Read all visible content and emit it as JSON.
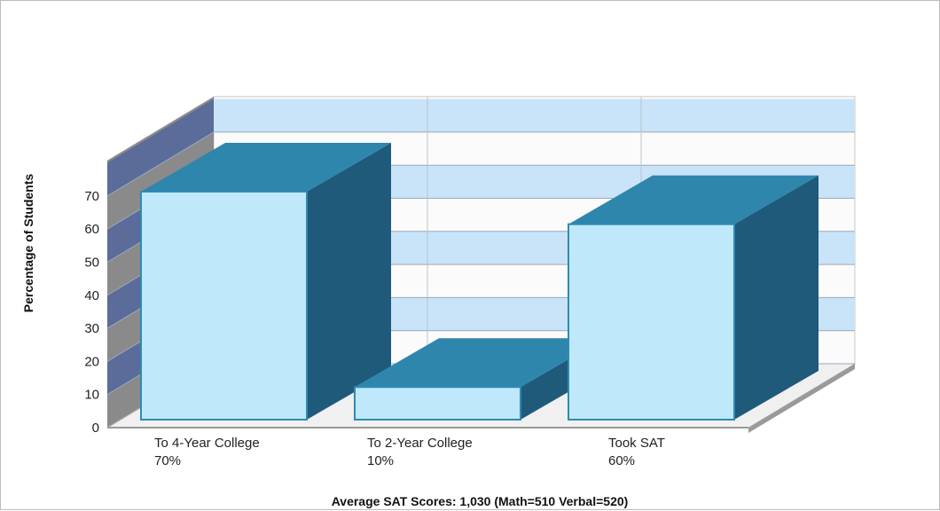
{
  "chart_data": {
    "type": "bar",
    "render": "3d",
    "categories": [
      "To 4-Year College",
      "To 2-Year College",
      "Took SAT"
    ],
    "values": [
      70,
      10,
      60
    ],
    "value_labels": [
      "70%",
      "10%",
      "60%"
    ],
    "title": "",
    "xlabel": "",
    "ylabel": "Percentage of Students",
    "ylim": [
      0,
      70
    ],
    "yticks": [
      0,
      10,
      20,
      30,
      40,
      50,
      60,
      70
    ],
    "footnote": "Average SAT Scores: 1,030 (Math=510 Verbal=520)",
    "grid": true,
    "legend": "none",
    "colors": {
      "bar_front": "#bfe9fa",
      "bar_front_stroke": "#2f8ab5",
      "bar_top": "#2f86ad",
      "bar_side": "#1f5a7a",
      "band_fill": "#c9e3f8",
      "back_wall": "#fbfbfb",
      "left_wall": "#8a8a8a",
      "left_band": "#5b6b9a",
      "floor": "#f0f0f0",
      "grid_line": "#9aaab8"
    }
  }
}
